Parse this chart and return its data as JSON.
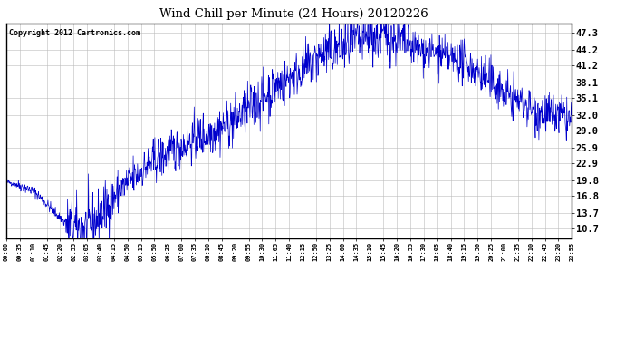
{
  "title": "Wind Chill per Minute (24 Hours) 20120226",
  "copyright_text": "Copyright 2012 Cartronics.com",
  "line_color": "#0000CC",
  "background_color": "#ffffff",
  "grid_color": "#bbbbbb",
  "yticks": [
    10.7,
    13.7,
    16.8,
    19.8,
    22.9,
    25.9,
    29.0,
    32.0,
    35.1,
    38.1,
    41.2,
    44.2,
    47.3
  ],
  "ylim": [
    9.0,
    49.0
  ],
  "xtick_labels": [
    "00:00",
    "00:35",
    "01:10",
    "01:45",
    "02:20",
    "02:55",
    "03:05",
    "03:40",
    "04:15",
    "04:50",
    "05:15",
    "05:50",
    "06:25",
    "07:00",
    "07:35",
    "08:10",
    "08:45",
    "09:20",
    "09:55",
    "10:30",
    "11:05",
    "11:40",
    "12:15",
    "12:50",
    "13:25",
    "14:00",
    "14:35",
    "15:10",
    "15:45",
    "16:20",
    "16:55",
    "17:30",
    "18:05",
    "18:40",
    "19:15",
    "19:50",
    "20:25",
    "21:00",
    "21:35",
    "22:10",
    "22:45",
    "23:20",
    "23:55"
  ],
  "figsize": [
    6.9,
    3.75
  ],
  "dpi": 100
}
